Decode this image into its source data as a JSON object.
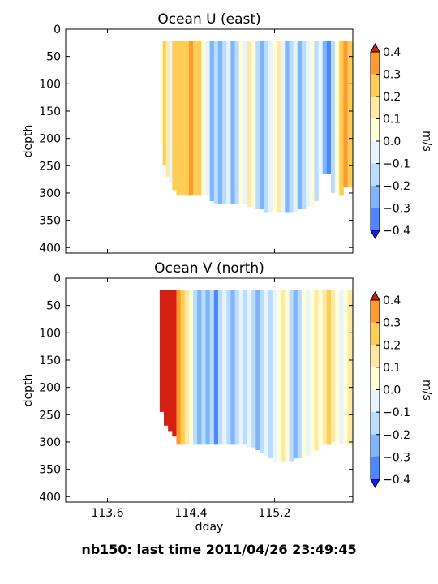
{
  "figure": {
    "suptitle": "nb150: last time 2011/04/26 23:49:45"
  },
  "palette": {
    "levels": [
      -0.4,
      -0.3,
      -0.2,
      -0.1,
      0.0,
      0.1,
      0.2,
      0.3,
      0.4
    ],
    "colors": [
      "#1f3fff",
      "#4d86ff",
      "#7fb4ff",
      "#b9dcff",
      "#e6f5ff",
      "#ffffd6",
      "#ffe9a3",
      "#ffcc55",
      "#ff9a2e",
      "#f45d17",
      "#d42012"
    ],
    "extend_low": "#1a1aff",
    "extend_high": "#cc2200"
  },
  "chart_data": [
    {
      "type": "heatmap",
      "title": "Ocean U (east)",
      "xlabel": "",
      "ylabel": "depth",
      "xlim": [
        113.2,
        115.95
      ],
      "ylim": [
        410,
        0
      ],
      "xticks": [],
      "yticks": [
        0,
        50,
        100,
        150,
        200,
        250,
        300,
        350,
        400
      ],
      "x_start": 114.1,
      "colorbar": {
        "label": "m/s",
        "ticks": [
          "0.4",
          "0.3",
          "0.2",
          "0.1",
          "0.0",
          "−0.1",
          "−0.2",
          "−0.3",
          "−0.4"
        ]
      },
      "depth_top": 22,
      "columns": [
        {
          "x": 114.1,
          "v": 0.05,
          "d": 210
        },
        {
          "x": 114.13,
          "v": 0.25,
          "d": 250
        },
        {
          "x": 114.16,
          "v": 0.15,
          "d": 270
        },
        {
          "x": 114.19,
          "v": -0.05,
          "d": 280
        },
        {
          "x": 114.22,
          "v": 0.2,
          "d": 295
        },
        {
          "x": 114.26,
          "v": 0.2,
          "d": 305
        },
        {
          "x": 114.3,
          "v": 0.25,
          "d": 305
        },
        {
          "x": 114.34,
          "v": 0.2,
          "d": 305
        },
        {
          "x": 114.38,
          "v": 0.3,
          "d": 305
        },
        {
          "x": 114.42,
          "v": 0.2,
          "d": 305
        },
        {
          "x": 114.46,
          "v": 0.25,
          "d": 305
        },
        {
          "x": 114.5,
          "v": 0.05,
          "d": 305
        },
        {
          "x": 114.54,
          "v": -0.05,
          "d": 305
        },
        {
          "x": 114.58,
          "v": -0.25,
          "d": 315
        },
        {
          "x": 114.62,
          "v": -0.15,
          "d": 320
        },
        {
          "x": 114.66,
          "v": -0.3,
          "d": 320
        },
        {
          "x": 114.7,
          "v": -0.15,
          "d": 320
        },
        {
          "x": 114.74,
          "v": -0.05,
          "d": 320
        },
        {
          "x": 114.78,
          "v": -0.3,
          "d": 320
        },
        {
          "x": 114.82,
          "v": -0.15,
          "d": 320
        },
        {
          "x": 114.86,
          "v": 0.05,
          "d": 320
        },
        {
          "x": 114.9,
          "v": -0.05,
          "d": 320
        },
        {
          "x": 114.94,
          "v": 0.15,
          "d": 325
        },
        {
          "x": 114.98,
          "v": 0.05,
          "d": 330
        },
        {
          "x": 115.02,
          "v": -0.15,
          "d": 330
        },
        {
          "x": 115.06,
          "v": -0.25,
          "d": 330
        },
        {
          "x": 115.1,
          "v": -0.15,
          "d": 335
        },
        {
          "x": 115.14,
          "v": -0.05,
          "d": 335
        },
        {
          "x": 115.18,
          "v": 0.05,
          "d": 335
        },
        {
          "x": 115.22,
          "v": 0.15,
          "d": 335
        },
        {
          "x": 115.26,
          "v": -0.05,
          "d": 335
        },
        {
          "x": 115.3,
          "v": -0.25,
          "d": 335
        },
        {
          "x": 115.34,
          "v": -0.15,
          "d": 335
        },
        {
          "x": 115.38,
          "v": -0.05,
          "d": 335
        },
        {
          "x": 115.42,
          "v": -0.25,
          "d": 330
        },
        {
          "x": 115.46,
          "v": -0.15,
          "d": 330
        },
        {
          "x": 115.5,
          "v": -0.05,
          "d": 325
        },
        {
          "x": 115.54,
          "v": 0.05,
          "d": 325
        },
        {
          "x": 115.58,
          "v": -0.15,
          "d": 315
        },
        {
          "x": 115.62,
          "v": -0.05,
          "d": 265
        },
        {
          "x": 115.66,
          "v": -0.25,
          "d": 265
        },
        {
          "x": 115.7,
          "v": -0.35,
          "d": 265
        },
        {
          "x": 115.74,
          "v": -0.15,
          "d": 300
        },
        {
          "x": 115.78,
          "v": 0.05,
          "d": 300
        },
        {
          "x": 115.82,
          "v": 0.25,
          "d": 305
        },
        {
          "x": 115.86,
          "v": 0.35,
          "d": 290
        },
        {
          "x": 115.9,
          "v": 0.25,
          "d": 290
        }
      ]
    },
    {
      "type": "heatmap",
      "title": "Ocean V (north)",
      "xlabel": "dday",
      "ylabel": "depth",
      "xlim": [
        113.2,
        115.95
      ],
      "ylim": [
        410,
        0
      ],
      "xticks": [
        "113.6",
        "114.4",
        "115.2"
      ],
      "yticks": [
        0,
        50,
        100,
        150,
        200,
        250,
        300,
        350,
        400
      ],
      "x_start": 114.1,
      "colorbar": {
        "label": "m/s",
        "ticks": [
          "0.4",
          "0.3",
          "0.2",
          "0.1",
          "0.0",
          "−0.1",
          "−0.2",
          "−0.3",
          "−0.4"
        ]
      },
      "depth_top": 22,
      "columns": [
        {
          "x": 114.1,
          "v": 0.45,
          "d": 245
        },
        {
          "x": 114.14,
          "v": 0.45,
          "d": 270
        },
        {
          "x": 114.18,
          "v": 0.45,
          "d": 280
        },
        {
          "x": 114.22,
          "v": 0.45,
          "d": 290
        },
        {
          "x": 114.26,
          "v": 0.35,
          "d": 305
        },
        {
          "x": 114.3,
          "v": 0.25,
          "d": 305
        },
        {
          "x": 114.34,
          "v": 0.15,
          "d": 305
        },
        {
          "x": 114.38,
          "v": 0.05,
          "d": 305
        },
        {
          "x": 114.42,
          "v": -0.15,
          "d": 305
        },
        {
          "x": 114.46,
          "v": -0.3,
          "d": 305
        },
        {
          "x": 114.5,
          "v": -0.15,
          "d": 305
        },
        {
          "x": 114.54,
          "v": -0.25,
          "d": 305
        },
        {
          "x": 114.58,
          "v": -0.15,
          "d": 305
        },
        {
          "x": 114.62,
          "v": -0.35,
          "d": 305
        },
        {
          "x": 114.66,
          "v": -0.15,
          "d": 305
        },
        {
          "x": 114.7,
          "v": -0.05,
          "d": 305
        },
        {
          "x": 114.74,
          "v": -0.15,
          "d": 305
        },
        {
          "x": 114.78,
          "v": -0.3,
          "d": 305
        },
        {
          "x": 114.82,
          "v": -0.15,
          "d": 305
        },
        {
          "x": 114.86,
          "v": -0.05,
          "d": 305
        },
        {
          "x": 114.9,
          "v": -0.15,
          "d": 305
        },
        {
          "x": 114.94,
          "v": -0.05,
          "d": 310
        },
        {
          "x": 114.98,
          "v": -0.15,
          "d": 310
        },
        {
          "x": 115.02,
          "v": -0.25,
          "d": 315
        },
        {
          "x": 115.06,
          "v": -0.15,
          "d": 320
        },
        {
          "x": 115.1,
          "v": -0.05,
          "d": 325
        },
        {
          "x": 115.14,
          "v": -0.15,
          "d": 330
        },
        {
          "x": 115.18,
          "v": -0.05,
          "d": 335
        },
        {
          "x": 115.22,
          "v": 0.05,
          "d": 335
        },
        {
          "x": 115.26,
          "v": 0.15,
          "d": 335
        },
        {
          "x": 115.3,
          "v": 0.05,
          "d": 330
        },
        {
          "x": 115.34,
          "v": -0.15,
          "d": 335
        },
        {
          "x": 115.38,
          "v": -0.25,
          "d": 330
        },
        {
          "x": 115.42,
          "v": -0.15,
          "d": 330
        },
        {
          "x": 115.46,
          "v": 0.05,
          "d": 330
        },
        {
          "x": 115.5,
          "v": -0.05,
          "d": 325
        },
        {
          "x": 115.54,
          "v": 0.05,
          "d": 320
        },
        {
          "x": 115.58,
          "v": 0.15,
          "d": 315
        },
        {
          "x": 115.62,
          "v": 0.05,
          "d": 305
        },
        {
          "x": 115.66,
          "v": 0.15,
          "d": 305
        },
        {
          "x": 115.7,
          "v": 0.25,
          "d": 305
        },
        {
          "x": 115.74,
          "v": 0.15,
          "d": 300
        },
        {
          "x": 115.78,
          "v": 0.05,
          "d": 300
        },
        {
          "x": 115.82,
          "v": -0.05,
          "d": 305
        },
        {
          "x": 115.86,
          "v": 0.05,
          "d": 305
        },
        {
          "x": 115.9,
          "v": 0.15,
          "d": 305
        }
      ]
    }
  ]
}
